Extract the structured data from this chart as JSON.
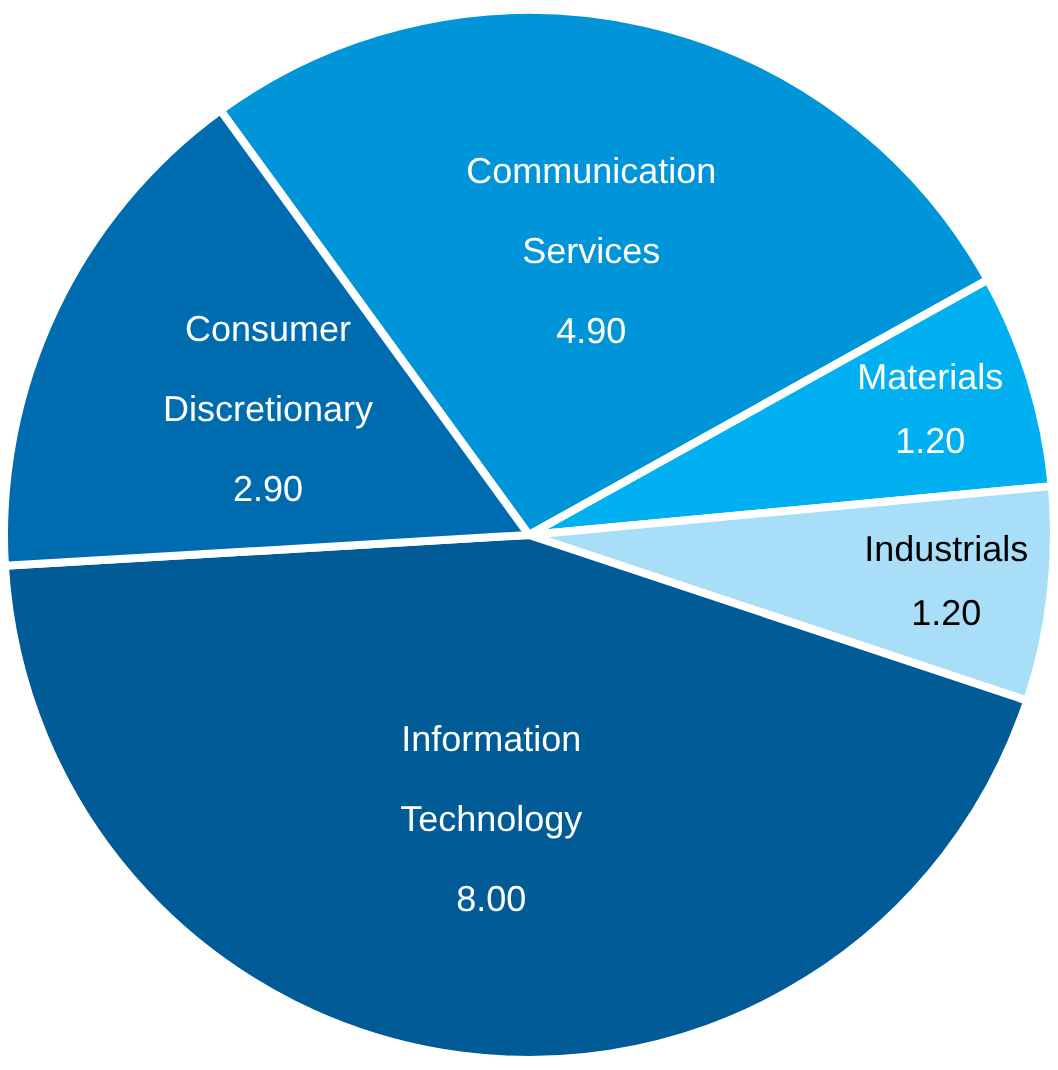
{
  "chart_data": {
    "type": "pie",
    "categories": [
      "Communication Services",
      "Materials",
      "Industrials",
      "Information Technology",
      "Consumer Discretionary"
    ],
    "values": [
      4.9,
      1.2,
      1.2,
      8.0,
      2.9
    ],
    "colors": [
      "#0094d8",
      "#00b0f0",
      "#a9def9",
      "#005b97",
      "#006cb0"
    ],
    "value_labels": [
      "4.90",
      "1.20",
      "1.20",
      "8.00",
      "2.90"
    ]
  }
}
